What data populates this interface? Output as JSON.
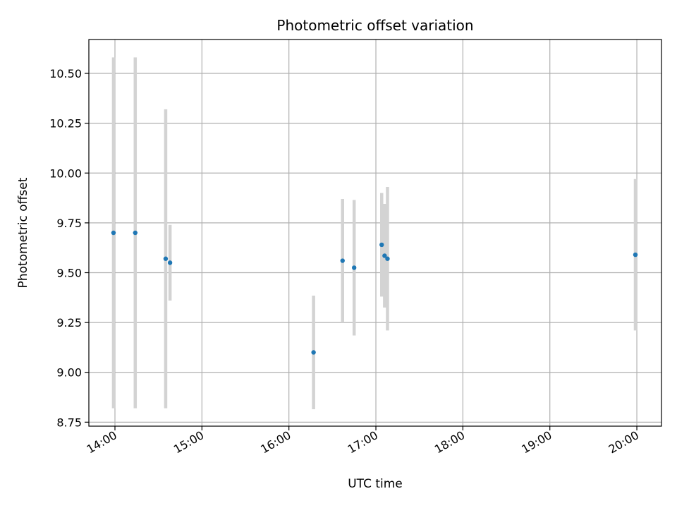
{
  "chart_data": {
    "type": "scatter",
    "title": "Photometric offset variation",
    "xlabel": "UTC time",
    "ylabel": "Photometric offset",
    "x_ticks": [
      "14:00",
      "15:00",
      "16:00",
      "17:00",
      "18:00",
      "19:00",
      "20:00"
    ],
    "y_ticks": [
      "8.75",
      "9.00",
      "9.25",
      "9.50",
      "9.75",
      "10.00",
      "10.25",
      "10.50"
    ],
    "xlim": [
      "13:42",
      "20:17"
    ],
    "ylim": [
      8.73,
      10.67
    ],
    "grid": true,
    "marker_color": "#1f77b4",
    "errorbar_color": "#d3d3d3",
    "points": [
      {
        "x": "13:59",
        "y": 9.7,
        "err": 0.88
      },
      {
        "x": "14:14",
        "y": 9.7,
        "err": 0.88
      },
      {
        "x": "14:35",
        "y": 9.57,
        "err": 0.75
      },
      {
        "x": "14:38",
        "y": 9.55,
        "err": 0.19
      },
      {
        "x": "16:17",
        "y": 9.1,
        "err": 0.285
      },
      {
        "x": "16:37",
        "y": 9.56,
        "err": 0.31
      },
      {
        "x": "16:45",
        "y": 9.525,
        "err": 0.34
      },
      {
        "x": "17:04",
        "y": 9.64,
        "err": 0.26
      },
      {
        "x": "17:06",
        "y": 9.585,
        "err": 0.26
      },
      {
        "x": "17:08",
        "y": 9.57,
        "err": 0.36
      },
      {
        "x": "19:59",
        "y": 9.59,
        "err": 0.38
      }
    ]
  }
}
